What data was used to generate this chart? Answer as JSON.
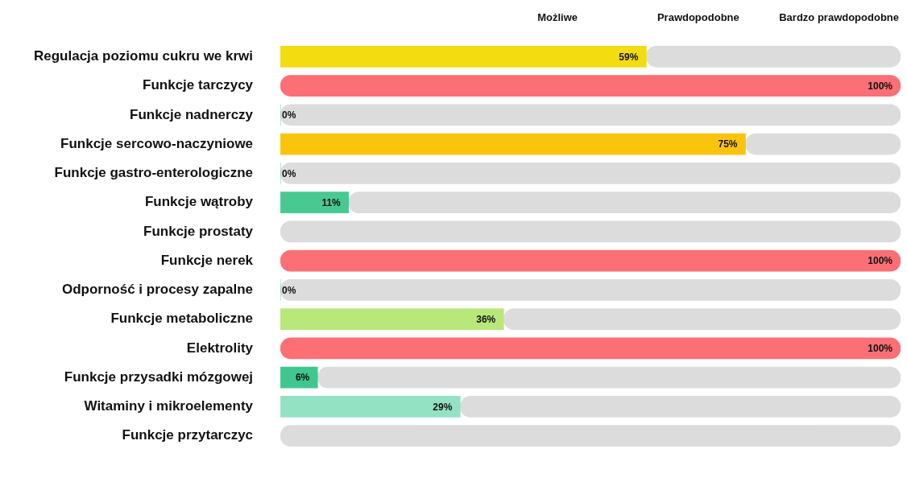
{
  "chart_data": {
    "type": "bar",
    "orientation": "horizontal",
    "categories": [
      "Regulacja poziomu cukru we krwi",
      "Funkcje tarczycy",
      "Funkcje nadnerczy",
      "Funkcje sercowo-naczyniowe",
      "Funkcje gastro-enterologiczne",
      "Funkcje wątroby",
      "Funkcje prostaty",
      "Funkcje nerek",
      "Odporność i procesy zapalne",
      "Funkcje metaboliczne",
      "Elektrolity",
      "Funkcje przysadki mózgowej",
      "Witaminy i mikroelementy",
      "Funkcje przytarczyc"
    ],
    "series": [
      {
        "values": [
          59,
          100,
          0,
          75,
          0,
          11,
          null,
          100,
          0,
          36,
          100,
          6,
          29,
          null
        ],
        "value_labels": [
          "59%",
          "100%",
          "0%",
          "75%",
          "0%",
          "11%",
          null,
          "100%",
          "0%",
          "36%",
          "100%",
          "6%",
          "29%",
          null
        ],
        "colors": [
          "#f3dc10",
          "#fb6f75",
          "#3cc68e",
          "#fbc40c",
          "#3cc68e",
          "#49c992",
          "#3cc68e",
          "#fb6f75",
          "#3cc68e",
          "#b8e87a",
          "#fb6f75",
          "#3fc78f",
          "#94e2c4",
          "#3cc68e"
        ]
      },
      {
        "values": [
          41,
          null,
          100,
          25,
          100,
          89,
          100,
          null,
          100,
          64,
          null,
          94,
          71,
          100
        ],
        "color": "#dcdcdc"
      }
    ],
    "stacked": true,
    "xlim": [
      0,
      100
    ],
    "tick_labels": "y",
    "grid": false,
    "legend": false,
    "annotations": [
      "Możliwe",
      "Prawdopodobne",
      "Bardzo prawdopodobne"
    ]
  }
}
